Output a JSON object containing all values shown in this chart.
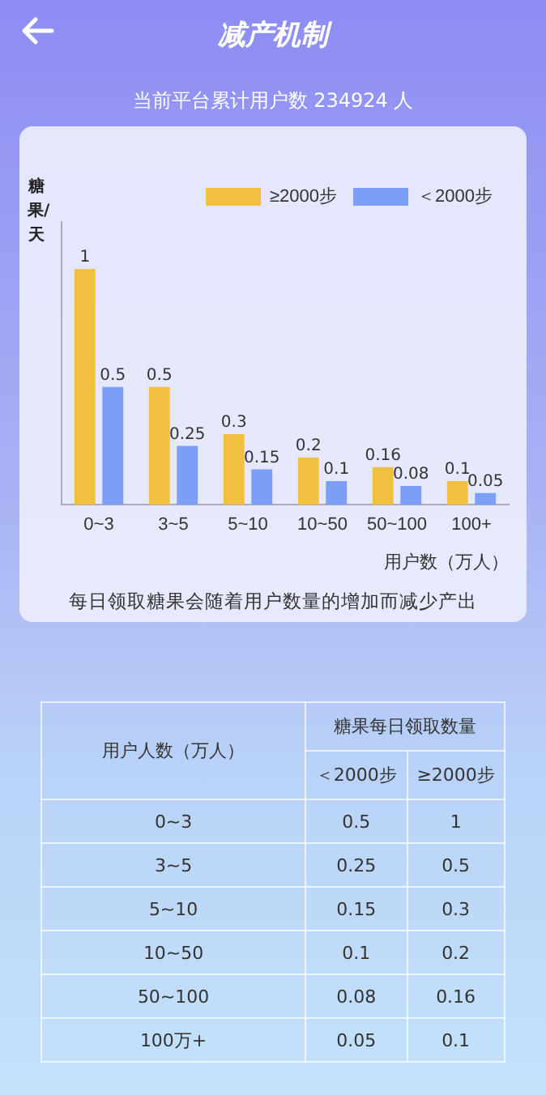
{
  "chart_data": [
    {
      "type": "bar",
      "title": "减产机制",
      "subtitle": "当前平台累计用户数  234924 人",
      "xlabel": "用户数（万人）",
      "ylabel": "糖果/天",
      "categories": [
        "0~3",
        "3~5",
        "5~10",
        "10~50",
        "50~100",
        "100+"
      ],
      "series": [
        {
          "name": "≥2000步",
          "color": "#f2c040",
          "values": [
            1,
            0.5,
            0.3,
            0.2,
            0.16,
            0.1
          ]
        },
        {
          "name": "＜2000步",
          "color": "#7d9ef7",
          "values": [
            0.5,
            0.25,
            0.15,
            0.1,
            0.08,
            0.05
          ]
        }
      ],
      "data_labels": true,
      "legend": "top right",
      "grid": false,
      "annotations": [
        "每日领取糖果会随着用户数量的增加而减少产出"
      ]
    },
    {
      "type": "other",
      "title": "糖果每日领取数量",
      "ylabel": "用户人数（万人）",
      "data_labels": true,
      "categories": [
        "0~3",
        "3~5",
        "5~10",
        "10~50",
        "50~100",
        "100万+"
      ],
      "series": [
        {
          "name": "＜2000步",
          "values": [
            0.5,
            0.25,
            0.15,
            0.1,
            0.08,
            0.05
          ]
        },
        {
          "name": "≥2000步",
          "values": [
            1,
            0.5,
            0.3,
            0.2,
            0.16,
            0.1
          ]
        }
      ]
    }
  ]
}
